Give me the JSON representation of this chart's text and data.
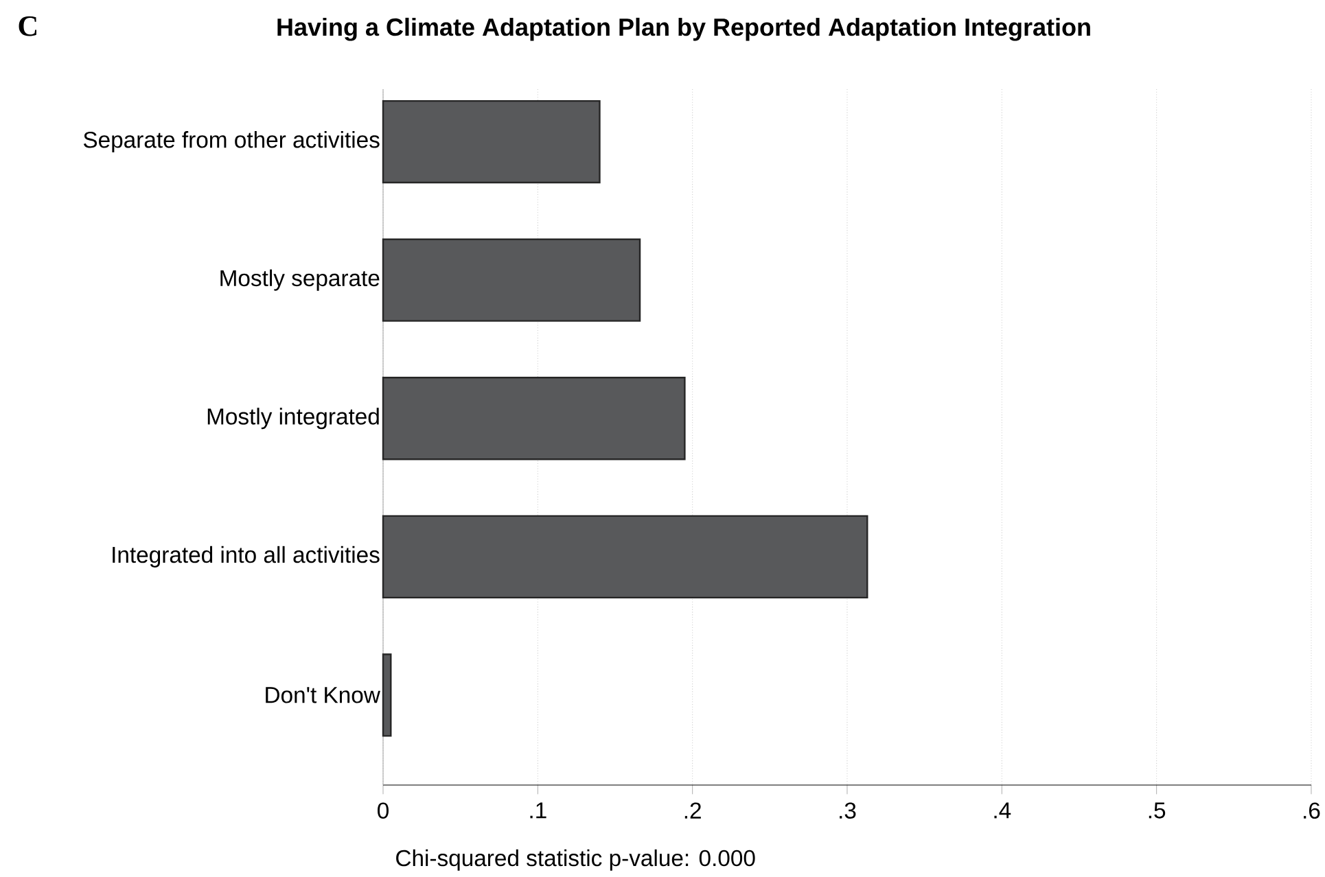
{
  "chart_data": {
    "type": "bar",
    "orientation": "horizontal",
    "title": "Having a Climate Adaptation Plan by Reported Adaptation Integration",
    "annotations": [
      "C",
      "Chi-squared statistic p-value: 0.000"
    ],
    "categories": [
      "Separate from other activities",
      "Mostly separate",
      "Mostly integrated",
      "Integrated into all activities",
      "Don't Know"
    ],
    "values": [
      0.14,
      0.166,
      0.195,
      0.313,
      0.005
    ],
    "color": "#58595b",
    "xlim": [
      0,
      0.6
    ],
    "xticks": [
      0,
      {
        "value": 0.1,
        "label": ".1"
      },
      {
        "value": 0.2,
        "label": ".2"
      },
      {
        "value": 0.3,
        "label": ".3"
      },
      {
        "value": 0.4,
        "label": ".4"
      },
      {
        "value": 0.5,
        "label": ".5"
      },
      {
        "value": 0.6,
        "label": ".6"
      }
    ],
    "grid": "x"
  }
}
